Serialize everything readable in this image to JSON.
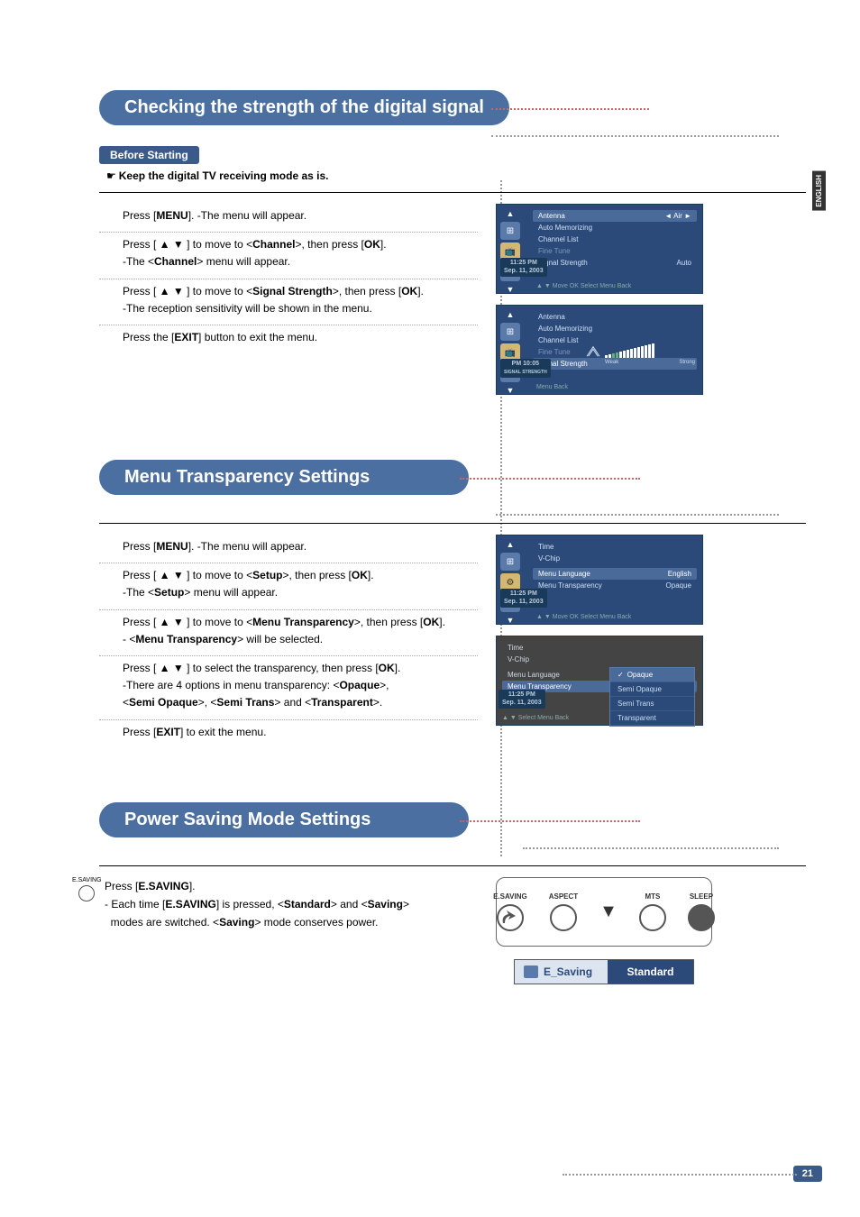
{
  "side_label": "ENGLISH",
  "page_number": "21",
  "sec1": {
    "title": "Checking the strength of the digital signal",
    "before_label": "Before Starting",
    "before_text": "Keep the digital TV receiving mode as is.",
    "steps": [
      {
        "pre": "Press [",
        "b1": "MENU",
        "post": "]. -The menu will appear."
      },
      {
        "pre": "Press [ ▲ ▼ ] to move to <",
        "b1": "Channel",
        "mid": ">, then press [",
        "b2": "OK",
        "post2": "].",
        "line2a": "-The <",
        "line2b": "Channel",
        "line2c": "> menu will appear."
      },
      {
        "pre": "Press [ ▲ ▼ ] to move to <",
        "b1": "Signal Strength",
        "mid": ">, then press [",
        "b2": "OK",
        "post2": "].",
        "line2": "-The reception sensitivity will be shown in the menu."
      },
      {
        "pre": "Press the [",
        "b1": "EXIT",
        "post": "] button to exit the menu."
      }
    ],
    "osd1": {
      "rows": [
        {
          "l": "Antenna",
          "r": "Air",
          "hl": true,
          "arrow": true
        },
        {
          "l": "Auto Memorizing",
          "r": ""
        },
        {
          "l": "Channel List",
          "r": ""
        },
        {
          "l": "Fine Tune",
          "r": "",
          "dim": true
        },
        {
          "l": "Signal Strength",
          "r": "Auto"
        }
      ],
      "time": "11:25 PM",
      "date": "Sep. 11, 2003",
      "foot": "▲ ▼ Move   OK  Select   Menu  Back"
    },
    "osd2": {
      "rows": [
        {
          "l": "Antenna",
          "r": ""
        },
        {
          "l": "Auto Memorizing",
          "r": ""
        },
        {
          "l": "Channel List",
          "r": ""
        },
        {
          "l": "Fine Tune",
          "r": "",
          "dim": true
        },
        {
          "l": "Signal Strength",
          "r": "",
          "hl": true
        }
      ],
      "time": "PM 10:05",
      "date": "",
      "foot": "Menu  Back",
      "sig_weak": "Weak",
      "sig_strong": "Strong"
    }
  },
  "sec2": {
    "title": "Menu Transparency Settings",
    "steps": [
      {
        "pre": "Press [",
        "b1": "MENU",
        "post": "]. -The menu will appear."
      },
      {
        "pre": "Press [ ▲ ▼ ] to move to <",
        "b1": "Setup",
        "mid": ">, then press [",
        "b2": "OK",
        "post2": "].",
        "line2a": "-The <",
        "line2b": "Setup",
        "line2c": "> menu will appear."
      },
      {
        "pre": "Press [ ▲ ▼ ] to move to <",
        "b1": "Menu Transparency",
        "mid": ">, then press [",
        "b2": "OK",
        "post2": "].",
        "line2a": "- <",
        "line2b": "Menu Transparency",
        "line2c": "> will be selected."
      },
      {
        "pre": "Press [ ▲ ▼ ] to select the transparency, then press [",
        "b1": "OK",
        "post": "].",
        "line2": "-There are 4 options in menu transparency: <",
        "opts": [
          "Opaque",
          "Semi Opaque",
          "Semi Trans",
          "Transparent"
        ]
      },
      {
        "pre": "Press [",
        "b1": "EXIT",
        "post": "] to exit the menu."
      }
    ],
    "osd1": {
      "rows": [
        {
          "l": "Time",
          "r": ""
        },
        {
          "l": "V-Chip",
          "r": ""
        },
        {
          "l": "",
          "r": "",
          "dim": true
        },
        {
          "l": "Menu Language",
          "r": "English",
          "hl": true
        },
        {
          "l": "Menu Transparency",
          "r": "Opaque"
        }
      ],
      "time": "11:25 PM",
      "date": "Sep. 11, 2003",
      "foot": "▲ ▼ Move   OK  Select   Menu  Back"
    },
    "osd2": {
      "rows": [
        {
          "l": "Time",
          "r": ""
        },
        {
          "l": "V-Chip",
          "r": ""
        },
        {
          "l": "",
          "r": "",
          "dim": true
        },
        {
          "l": "Menu Language",
          "r": ""
        },
        {
          "l": "Menu Transparency",
          "r": "",
          "hl": true
        }
      ],
      "time": "11:25 PM",
      "date": "Sep. 11, 2003",
      "foot": "▲ ▼ Select   Menu  Back",
      "dd": [
        "Opaque",
        "Semi Opaque",
        "Semi Trans",
        "Transparent"
      ]
    }
  },
  "sec3": {
    "title": "Power Saving Mode Settings",
    "icon_label": "E.SAVING",
    "line1_pre": "Press [",
    "line1_b": "E.SAVING",
    "line1_post": "].",
    "line2_a": "- Each time [",
    "line2_b": "E.SAVING",
    "line2_c": "] is pressed, <",
    "line2_d": "Standard",
    "line2_e": "> and <",
    "line2_f": "Saving",
    "line2_g": ">",
    "line3_a": "modes are switched. <",
    "line3_b": "Saving",
    "line3_c": "> mode conserves power.",
    "remote": {
      "b1": "E.SAVING",
      "b2": "ASPECT",
      "b3": "MTS",
      "b4": "SLEEP"
    },
    "bar_l": "E_Saving",
    "bar_r": "Standard"
  }
}
